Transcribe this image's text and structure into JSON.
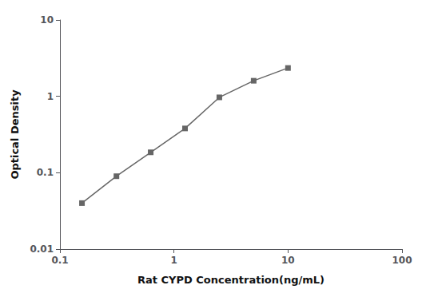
{
  "chart_data": {
    "type": "line",
    "x": [
      0.156,
      0.313,
      0.625,
      1.25,
      2.5,
      5.0,
      10.0
    ],
    "values": [
      0.04,
      0.09,
      0.185,
      0.38,
      0.97,
      1.6,
      2.35
    ],
    "xlabel": "Rat CYPD Concentration(ng/mL)",
    "ylabel": "Optical Density",
    "xlim": [
      0.1,
      100
    ],
    "ylim": [
      0.01,
      10
    ],
    "xticks": [
      0.1,
      1,
      10,
      100
    ],
    "yticks": [
      0.01,
      0.1,
      1,
      10
    ],
    "log": true,
    "grid": false,
    "color": "#666666",
    "marker": "square"
  }
}
